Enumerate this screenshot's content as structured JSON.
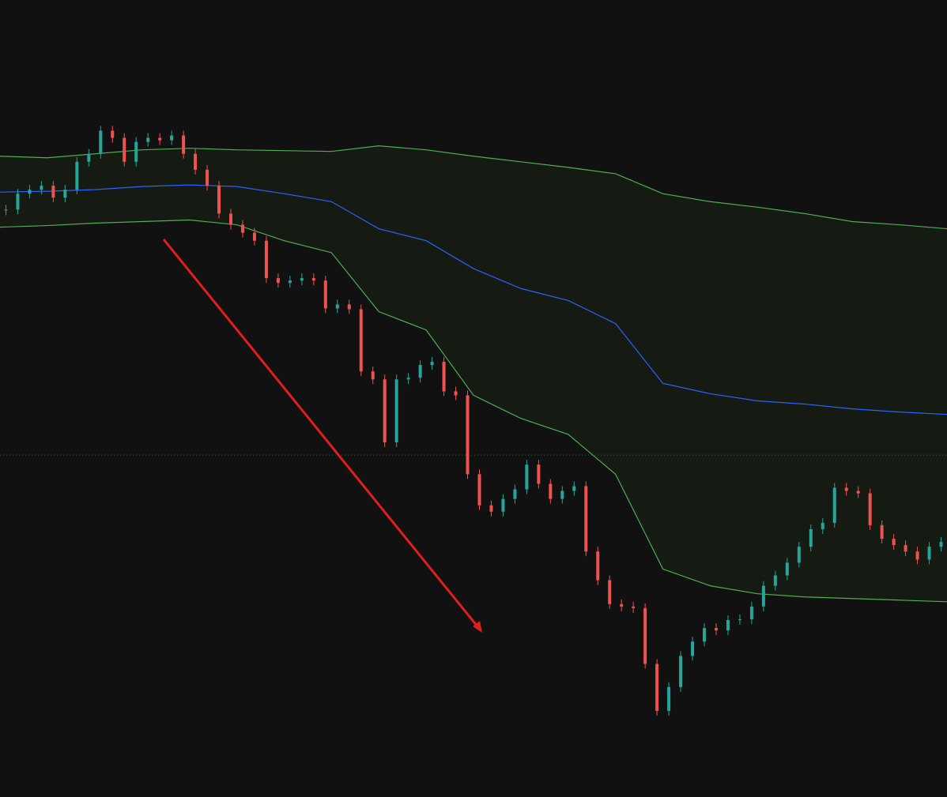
{
  "chart_data": {
    "type": "candlestick",
    "ylim": [
      0,
      100
    ],
    "up_color": "#26a69a",
    "down_color": "#ef5350",
    "closes": [
      73.7,
      75.7,
      76.2,
      76.7,
      75.2,
      76.2,
      79.7,
      80.7,
      83.6,
      82.7,
      79.7,
      82.2,
      82.7,
      82.4,
      83.0,
      80.7,
      78.7,
      76.7,
      73.2,
      71.8,
      70.8,
      69.8,
      65.1,
      64.5,
      64.8,
      65.1,
      64.8,
      61.3,
      61.8,
      61.2,
      53.4,
      52.4,
      44.5,
      52.4,
      52.6,
      54.2,
      54.6,
      50.9,
      50.4,
      40.5,
      36.6,
      35.8,
      37.4,
      38.6,
      41.7,
      39.3,
      37.4,
      38.4,
      39.0,
      30.8,
      27.2,
      24.2,
      23.9,
      23.7,
      16.7,
      10.8,
      13.8,
      17.7,
      19.5,
      21.2,
      20.9,
      22.2,
      22.3,
      23.9,
      26.5,
      27.8,
      29.4,
      31.4,
      33.6,
      34.4,
      38.8,
      38.4,
      38.1,
      34.1,
      32.4,
      31.6,
      30.8,
      29.8,
      31.4,
      32.0
    ],
    "bands": [
      {
        "color": "#4caf50",
        "values": [
          80.4,
          80.2,
          80.7,
          81.2,
          81.4,
          81.2,
          81.1,
          81.0,
          81.7,
          81.2,
          80.4,
          79.7,
          79.0,
          78.2,
          75.7,
          74.7,
          74.0,
          73.2,
          72.2,
          71.8,
          71.3
        ]
      },
      {
        "color": "#2962ff",
        "values": [
          75.9,
          76.0,
          76.2,
          76.6,
          76.8,
          76.6,
          75.7,
          74.7,
          71.3,
          69.8,
          66.3,
          63.8,
          62.3,
          59.4,
          51.9,
          50.6,
          49.7,
          49.3,
          48.7,
          48.3,
          48.0
        ]
      },
      {
        "color": "#4caf50",
        "values": [
          71.5,
          71.7,
          72.0,
          72.2,
          72.4,
          71.8,
          69.8,
          68.3,
          60.9,
          58.6,
          50.4,
          47.5,
          45.5,
          40.5,
          28.6,
          26.5,
          25.5,
          25.1,
          24.9,
          24.7,
          24.5
        ]
      }
    ],
    "band_fill": "#151a13",
    "reference_line": 42.9
  }
}
